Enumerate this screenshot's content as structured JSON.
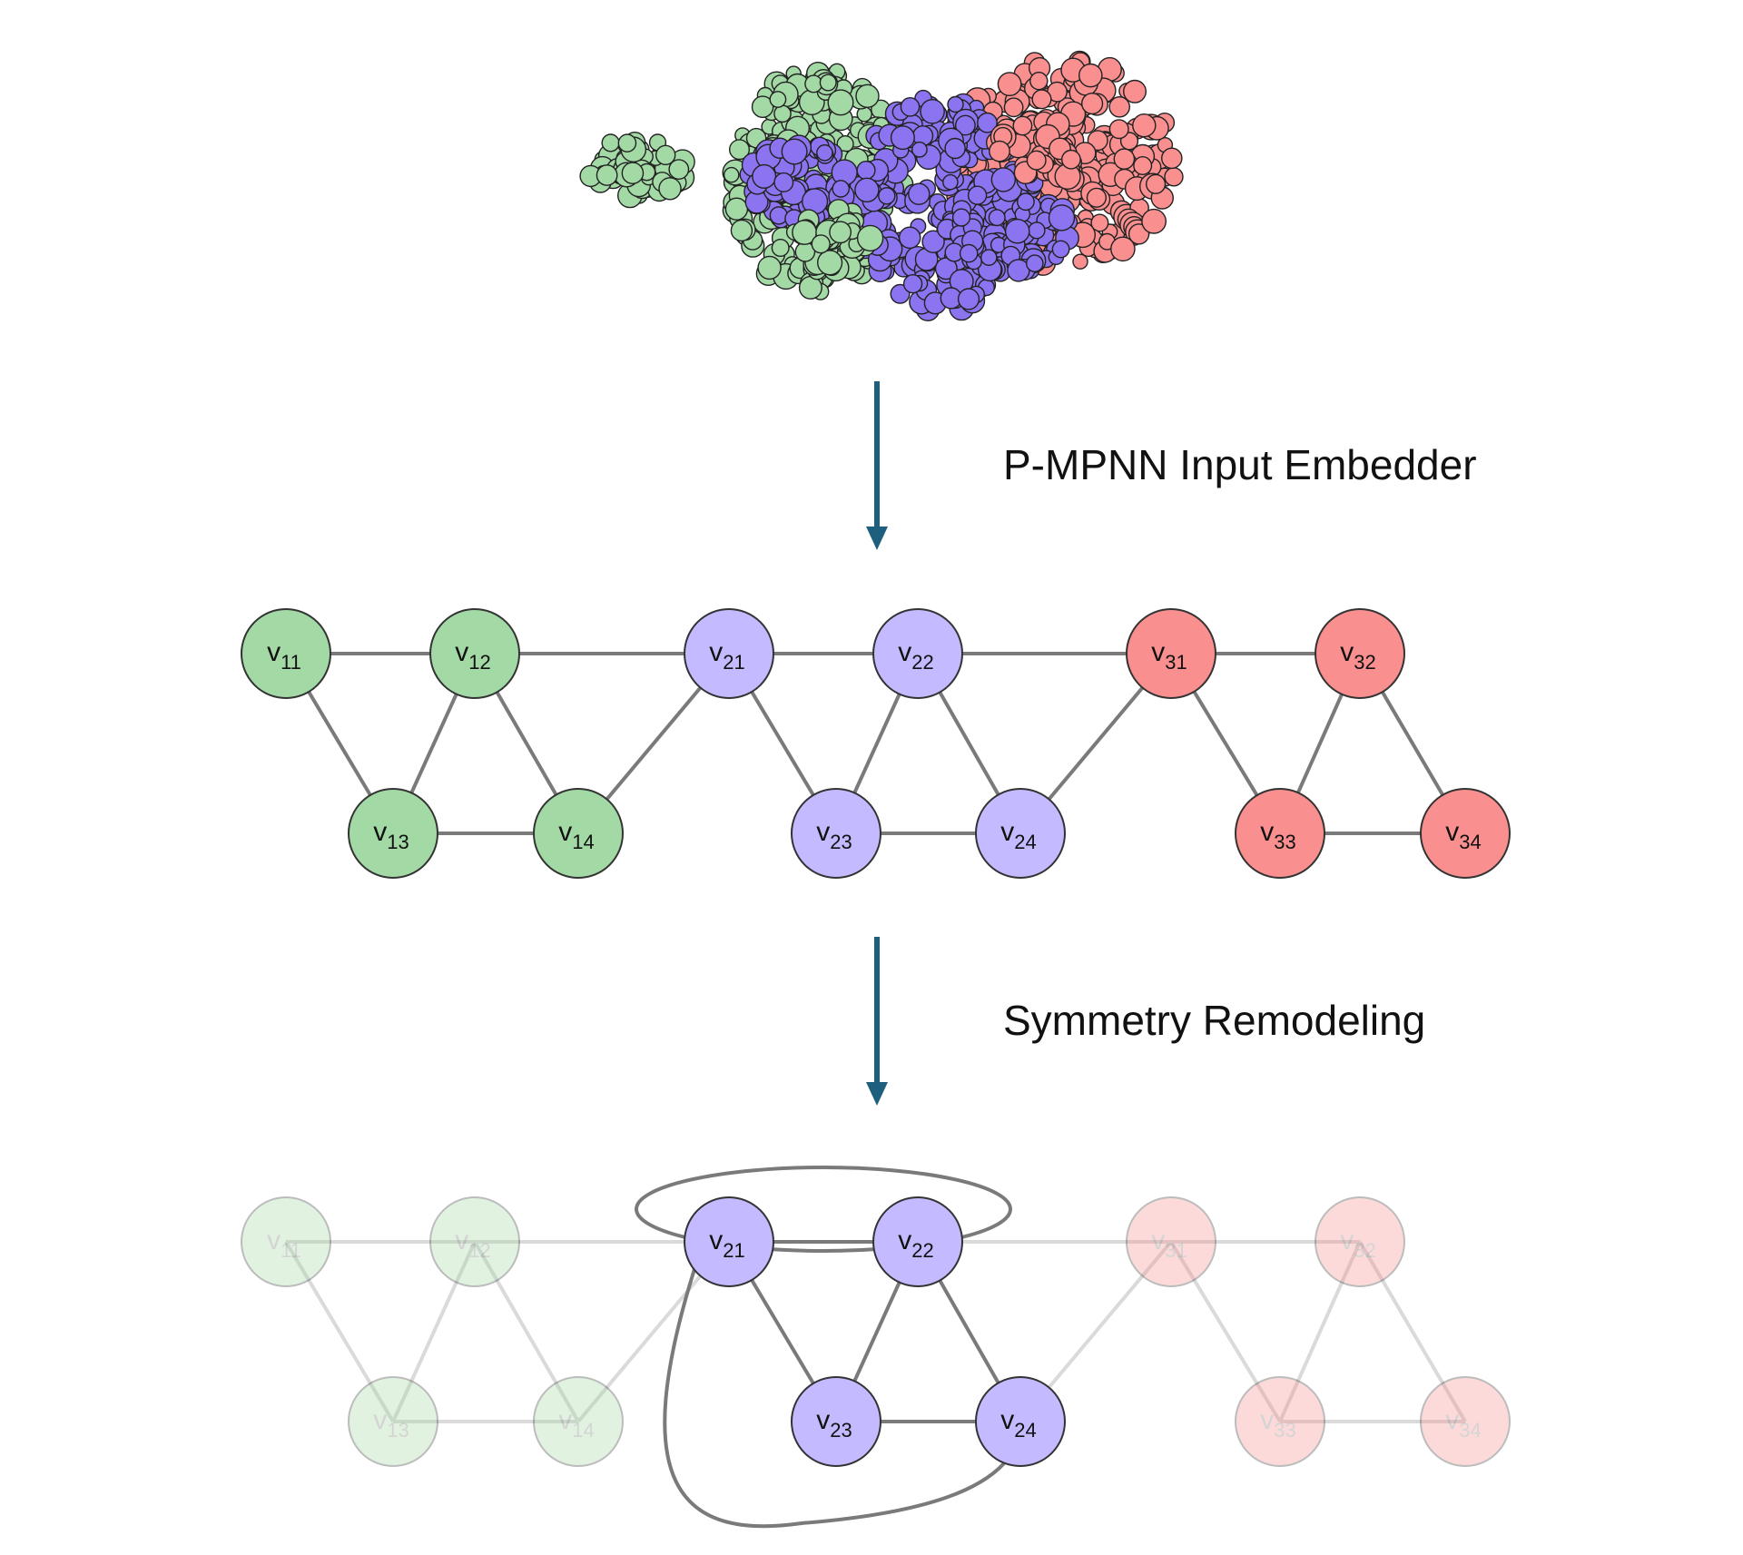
{
  "colors": {
    "chain_1": "#a3d9a5",
    "chain_2": "#c4baff",
    "chain_3": "#fa8f8f",
    "chain_2_dark": "#8c73f0",
    "chain_3_dark": "#f27a72",
    "arrow": "#1f5f7e",
    "edge": "#7a7a7a"
  },
  "protein_structure_icon": "space-filling-protein-complex",
  "steps": {
    "embed_label": "P-MPNN Input Embedder",
    "symmetry_label": "Symmetry Remodeling"
  },
  "nodes": [
    {
      "id": "v11",
      "base": "v",
      "sub": "11",
      "chain": 1
    },
    {
      "id": "v12",
      "base": "v",
      "sub": "12",
      "chain": 1
    },
    {
      "id": "v13",
      "base": "v",
      "sub": "13",
      "chain": 1
    },
    {
      "id": "v14",
      "base": "v",
      "sub": "14",
      "chain": 1
    },
    {
      "id": "v21",
      "base": "v",
      "sub": "21",
      "chain": 2
    },
    {
      "id": "v22",
      "base": "v",
      "sub": "22",
      "chain": 2
    },
    {
      "id": "v23",
      "base": "v",
      "sub": "23",
      "chain": 2
    },
    {
      "id": "v24",
      "base": "v",
      "sub": "24",
      "chain": 2
    },
    {
      "id": "v31",
      "base": "v",
      "sub": "31",
      "chain": 3
    },
    {
      "id": "v32",
      "base": "v",
      "sub": "32",
      "chain": 3
    },
    {
      "id": "v33",
      "base": "v",
      "sub": "33",
      "chain": 3
    },
    {
      "id": "v34",
      "base": "v",
      "sub": "34",
      "chain": 3
    }
  ],
  "edges": [
    [
      "v11",
      "v12"
    ],
    [
      "v12",
      "v21"
    ],
    [
      "v21",
      "v22"
    ],
    [
      "v22",
      "v31"
    ],
    [
      "v31",
      "v32"
    ],
    [
      "v11",
      "v13"
    ],
    [
      "v12",
      "v13"
    ],
    [
      "v12",
      "v14"
    ],
    [
      "v13",
      "v14"
    ],
    [
      "v14",
      "v21"
    ],
    [
      "v21",
      "v23"
    ],
    [
      "v22",
      "v23"
    ],
    [
      "v22",
      "v24"
    ],
    [
      "v23",
      "v24"
    ],
    [
      "v24",
      "v31"
    ],
    [
      "v31",
      "v33"
    ],
    [
      "v32",
      "v33"
    ],
    [
      "v32",
      "v34"
    ],
    [
      "v33",
      "v34"
    ]
  ],
  "symmetry_graph": {
    "highlighted_chain": 2,
    "extra_edges": [
      [
        "v21",
        "v22"
      ],
      [
        "v21",
        "v24"
      ]
    ]
  }
}
